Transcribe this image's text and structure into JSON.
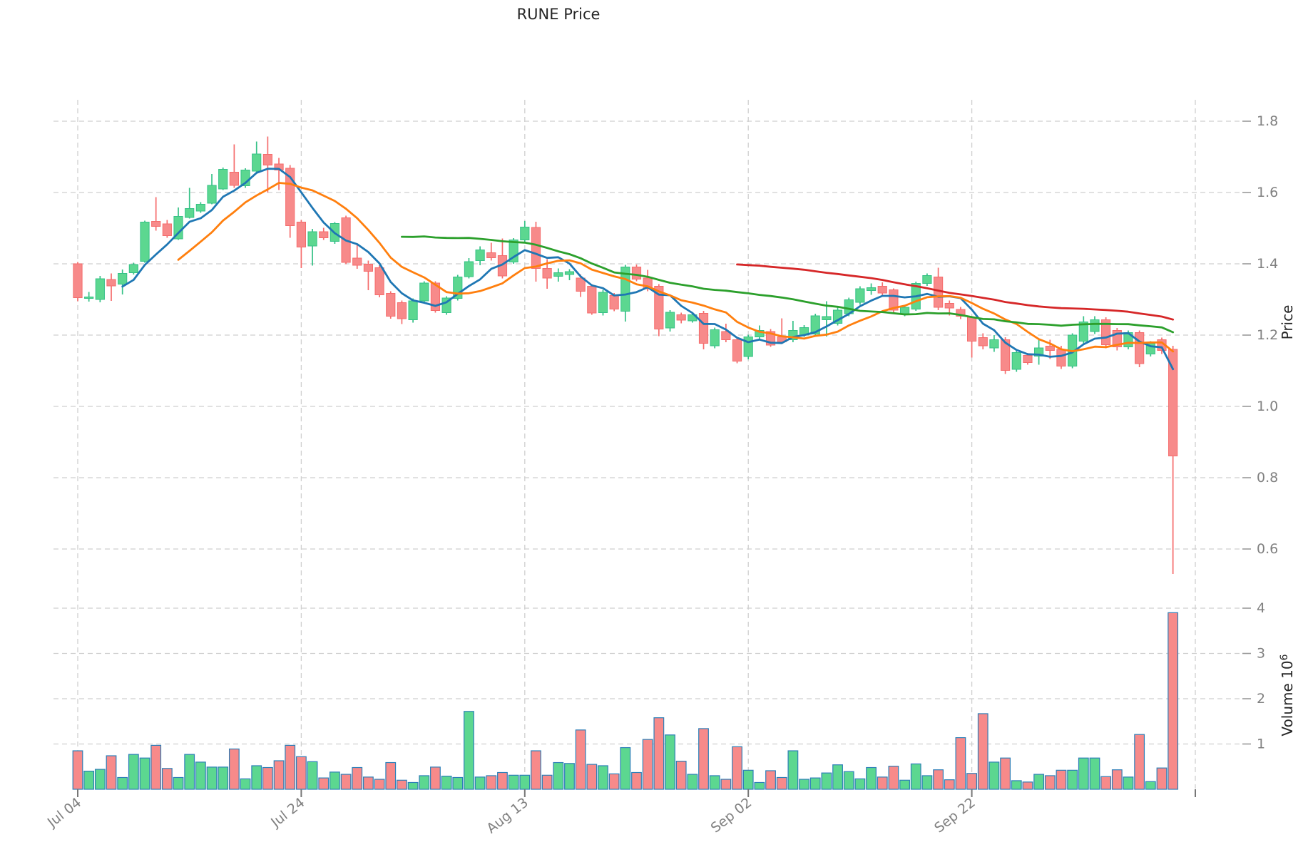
{
  "title": "RUNE Price",
  "axes": {
    "price_label": "Price",
    "volume_label": "Volume  10",
    "volume_exponent": "6"
  },
  "colors": {
    "up_fill": "#5CD790",
    "up_edge": "#35C186",
    "down_fill": "#F78A8A",
    "down_edge": "#F56C6C",
    "volume_bar_edge": "#2D7FB8",
    "ma_colors": [
      "#1f77b4",
      "#ff7f0e",
      "#2ca02c",
      "#d62728"
    ],
    "grid": "#cfcfcf",
    "tick_mark": "#9a9a9a",
    "tick_label": "#808080",
    "title_color": "#262626"
  },
  "chart_data": {
    "type": "candlestick",
    "title": "RUNE Price",
    "ylabel": "Price",
    "ylabel2": "Volume 10^6",
    "legend_position": "none",
    "grid": "dashed",
    "price_ticks": [
      0.6,
      0.8,
      1.0,
      1.2,
      1.4,
      1.6,
      1.8
    ],
    "volume_ticks_millions": [
      1,
      2,
      3,
      4
    ],
    "x_ticks": [
      {
        "index": 0,
        "label": "Jul 04"
      },
      {
        "index": 20,
        "label": "Jul 24"
      },
      {
        "index": 40,
        "label": "Aug 13"
      },
      {
        "index": 60,
        "label": "Sep 02"
      },
      {
        "index": 80,
        "label": "Sep 22"
      },
      {
        "index": 100,
        "label": ""
      }
    ],
    "moving_averages": {
      "periods": [
        5,
        10,
        30,
        60
      ]
    },
    "candles": {
      "open": [
        1.4,
        1.303,
        1.3,
        1.356,
        1.343,
        1.375,
        1.407,
        1.519,
        1.512,
        1.47,
        1.53,
        1.548,
        1.57,
        1.61,
        1.657,
        1.619,
        1.66,
        1.707,
        1.68,
        1.668,
        1.517,
        1.45,
        1.49,
        1.463,
        1.529,
        1.416,
        1.399,
        1.389,
        1.317,
        1.291,
        1.243,
        1.296,
        1.346,
        1.263,
        1.303,
        1.364,
        1.409,
        1.431,
        1.423,
        1.405,
        1.467,
        1.502,
        1.387,
        1.365,
        1.37,
        1.36,
        1.337,
        1.263,
        1.311,
        1.267,
        1.391,
        1.36,
        1.337,
        1.22,
        1.257,
        1.24,
        1.261,
        1.17,
        1.21,
        1.187,
        1.14,
        1.195,
        1.21,
        1.195,
        1.187,
        1.2,
        1.203,
        1.243,
        1.233,
        1.26,
        1.292,
        1.325,
        1.337,
        1.327,
        1.26,
        1.273,
        1.345,
        1.363,
        1.289,
        1.272,
        1.25,
        1.193,
        1.164,
        1.187,
        1.104,
        1.143,
        1.141,
        1.169,
        1.16,
        1.113,
        1.183,
        1.21,
        1.243,
        1.213,
        1.167,
        1.207,
        1.147,
        1.187,
        1.16
      ],
      "high": [
        1.405,
        1.321,
        1.366,
        1.373,
        1.384,
        1.403,
        1.521,
        1.587,
        1.523,
        1.558,
        1.613,
        1.573,
        1.652,
        1.67,
        1.735,
        1.668,
        1.743,
        1.757,
        1.697,
        1.677,
        1.523,
        1.498,
        1.501,
        1.517,
        1.535,
        1.453,
        1.409,
        1.396,
        1.323,
        1.297,
        1.303,
        1.351,
        1.351,
        1.309,
        1.369,
        1.416,
        1.449,
        1.459,
        1.471,
        1.472,
        1.52,
        1.518,
        1.413,
        1.387,
        1.385,
        1.37,
        1.343,
        1.327,
        1.318,
        1.397,
        1.398,
        1.383,
        1.343,
        1.27,
        1.263,
        1.262,
        1.268,
        1.221,
        1.232,
        1.193,
        1.201,
        1.227,
        1.217,
        1.247,
        1.24,
        1.228,
        1.26,
        1.295,
        1.277,
        1.305,
        1.337,
        1.345,
        1.348,
        1.331,
        1.283,
        1.35,
        1.373,
        1.389,
        1.297,
        1.279,
        1.253,
        1.205,
        1.2,
        1.194,
        1.16,
        1.15,
        1.191,
        1.187,
        1.17,
        1.205,
        1.253,
        1.253,
        1.25,
        1.22,
        1.213,
        1.213,
        1.183,
        1.193,
        1.17
      ],
      "low": [
        1.295,
        1.294,
        1.292,
        1.296,
        1.314,
        1.37,
        1.403,
        1.493,
        1.473,
        1.467,
        1.527,
        1.543,
        1.567,
        1.607,
        1.613,
        1.613,
        1.657,
        1.6,
        1.607,
        1.473,
        1.388,
        1.395,
        1.467,
        1.456,
        1.399,
        1.386,
        1.326,
        1.306,
        1.246,
        1.231,
        1.235,
        1.291,
        1.263,
        1.257,
        1.297,
        1.359,
        1.396,
        1.409,
        1.359,
        1.4,
        1.46,
        1.35,
        1.33,
        1.35,
        1.354,
        1.307,
        1.257,
        1.255,
        1.267,
        1.238,
        1.351,
        1.323,
        1.197,
        1.21,
        1.233,
        1.235,
        1.16,
        1.163,
        1.18,
        1.121,
        1.132,
        1.188,
        1.167,
        1.175,
        1.18,
        1.195,
        1.197,
        1.196,
        1.227,
        1.253,
        1.285,
        1.313,
        1.311,
        1.263,
        1.253,
        1.268,
        1.338,
        1.27,
        1.255,
        1.245,
        1.137,
        1.16,
        1.153,
        1.091,
        1.097,
        1.117,
        1.117,
        1.133,
        1.105,
        1.107,
        1.173,
        1.203,
        1.163,
        1.157,
        1.16,
        1.11,
        1.14,
        1.147,
        0.53
      ],
      "close": [
        1.305,
        1.307,
        1.358,
        1.338,
        1.373,
        1.398,
        1.517,
        1.505,
        1.479,
        1.533,
        1.555,
        1.567,
        1.62,
        1.665,
        1.62,
        1.663,
        1.708,
        1.677,
        1.663,
        1.507,
        1.447,
        1.49,
        1.473,
        1.513,
        1.404,
        1.396,
        1.379,
        1.313,
        1.253,
        1.246,
        1.296,
        1.346,
        1.269,
        1.304,
        1.363,
        1.406,
        1.439,
        1.417,
        1.366,
        1.467,
        1.503,
        1.387,
        1.36,
        1.375,
        1.378,
        1.323,
        1.262,
        1.32,
        1.273,
        1.391,
        1.357,
        1.33,
        1.217,
        1.264,
        1.242,
        1.257,
        1.177,
        1.215,
        1.187,
        1.127,
        1.195,
        1.213,
        1.172,
        1.181,
        1.213,
        1.221,
        1.254,
        1.252,
        1.27,
        1.299,
        1.33,
        1.333,
        1.318,
        1.27,
        1.278,
        1.345,
        1.367,
        1.278,
        1.276,
        1.253,
        1.183,
        1.17,
        1.187,
        1.101,
        1.151,
        1.123,
        1.164,
        1.157,
        1.113,
        1.2,
        1.237,
        1.243,
        1.173,
        1.167,
        1.207,
        1.12,
        1.177,
        1.157,
        0.861
      ],
      "volume_millions": [
        0.85,
        0.4,
        0.44,
        0.74,
        0.26,
        0.77,
        0.69,
        0.97,
        0.46,
        0.26,
        0.77,
        0.6,
        0.49,
        0.49,
        0.89,
        0.23,
        0.52,
        0.48,
        0.63,
        0.97,
        0.72,
        0.61,
        0.25,
        0.38,
        0.33,
        0.48,
        0.27,
        0.22,
        0.59,
        0.2,
        0.15,
        0.3,
        0.49,
        0.29,
        0.26,
        1.72,
        0.27,
        0.3,
        0.37,
        0.31,
        0.31,
        0.85,
        0.31,
        0.59,
        0.57,
        1.31,
        0.55,
        0.52,
        0.34,
        0.92,
        0.37,
        1.1,
        1.58,
        1.2,
        0.62,
        0.33,
        1.34,
        0.3,
        0.22,
        0.94,
        0.42,
        0.15,
        0.41,
        0.26,
        0.85,
        0.22,
        0.25,
        0.36,
        0.54,
        0.39,
        0.23,
        0.48,
        0.27,
        0.51,
        0.2,
        0.56,
        0.3,
        0.43,
        0.21,
        1.14,
        0.35,
        1.67,
        0.6,
        0.69,
        0.19,
        0.16,
        0.33,
        0.3,
        0.42,
        0.42,
        0.69,
        0.69,
        0.28,
        0.43,
        0.27,
        1.21,
        0.17,
        0.47,
        3.9
      ]
    }
  }
}
